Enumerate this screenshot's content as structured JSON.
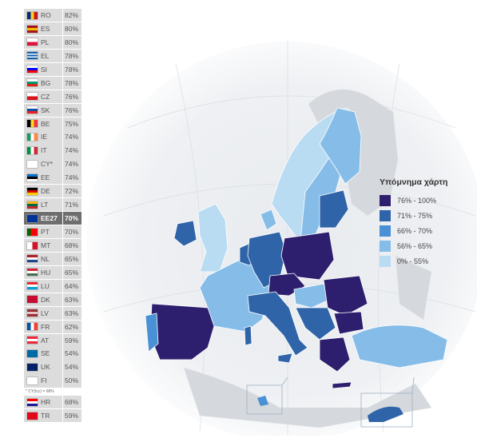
{
  "ranking": [
    {
      "code": "RO",
      "value": "82%",
      "flag": [
        "#002B7F",
        "#FCD116",
        "#CE1126"
      ],
      "dir": "v"
    },
    {
      "code": "ES",
      "value": "80%",
      "flag": [
        "#AA151B",
        "#F1BF00",
        "#AA151B"
      ],
      "dir": "h"
    },
    {
      "code": "PL",
      "value": "80%",
      "flag": [
        "#ffffff",
        "#DC143C"
      ],
      "dir": "h"
    },
    {
      "code": "EL",
      "value": "78%",
      "flag": [
        "#0D5EAF",
        "#ffffff",
        "#0D5EAF",
        "#ffffff",
        "#0D5EAF"
      ],
      "dir": "h"
    },
    {
      "code": "SI",
      "value": "78%",
      "flag": [
        "#ffffff",
        "#0000FF",
        "#FF0000"
      ],
      "dir": "h"
    },
    {
      "code": "BG",
      "value": "78%",
      "flag": [
        "#ffffff",
        "#00966E",
        "#D62612"
      ],
      "dir": "h"
    },
    {
      "code": "CZ",
      "value": "76%",
      "flag": [
        "#ffffff",
        "#D7141A"
      ],
      "dir": "h"
    },
    {
      "code": "SK",
      "value": "76%",
      "flag": [
        "#ffffff",
        "#0B4EA2",
        "#EE1C25"
      ],
      "dir": "h"
    },
    {
      "code": "BE",
      "value": "75%",
      "flag": [
        "#000000",
        "#FDDA24",
        "#EF3340"
      ],
      "dir": "v"
    },
    {
      "code": "IE",
      "value": "74%",
      "flag": [
        "#169B62",
        "#ffffff",
        "#FF883E"
      ],
      "dir": "v"
    },
    {
      "code": "IT",
      "value": "74%",
      "flag": [
        "#009246",
        "#ffffff",
        "#CE2B37"
      ],
      "dir": "v"
    },
    {
      "code": "CY*",
      "value": "74%",
      "flag": [
        "#ffffff"
      ],
      "dir": "h"
    },
    {
      "code": "EE",
      "value": "74%",
      "flag": [
        "#0072CE",
        "#000000",
        "#ffffff"
      ],
      "dir": "h"
    },
    {
      "code": "DE",
      "value": "72%",
      "flag": [
        "#000000",
        "#DD0000",
        "#FFCE00"
      ],
      "dir": "h"
    },
    {
      "code": "LT",
      "value": "71%",
      "flag": [
        "#FDB913",
        "#006A44",
        "#C1272D"
      ],
      "dir": "h"
    },
    {
      "code": "EE27",
      "value": "70%",
      "flag": [
        "#003399"
      ],
      "dir": "h",
      "avg": true
    },
    {
      "code": "PT",
      "value": "70%",
      "flag": [
        "#006600",
        "#FF0000",
        "#FF0000"
      ],
      "dir": "v"
    },
    {
      "code": "MT",
      "value": "68%",
      "flag": [
        "#ffffff",
        "#CF142B"
      ],
      "dir": "v"
    },
    {
      "code": "NL",
      "value": "65%",
      "flag": [
        "#AE1C28",
        "#ffffff",
        "#21468B"
      ],
      "dir": "h"
    },
    {
      "code": "HU",
      "value": "65%",
      "flag": [
        "#CE2939",
        "#ffffff",
        "#477050"
      ],
      "dir": "h"
    },
    {
      "code": "LU",
      "value": "64%",
      "flag": [
        "#ED2939",
        "#ffffff",
        "#00A1DE"
      ],
      "dir": "h"
    },
    {
      "code": "DK",
      "value": "63%",
      "flag": [
        "#C60C30"
      ],
      "dir": "h"
    },
    {
      "code": "LV",
      "value": "63%",
      "flag": [
        "#9E3039",
        "#9E3039",
        "#ffffff",
        "#9E3039",
        "#9E3039"
      ],
      "dir": "h"
    },
    {
      "code": "FR",
      "value": "62%",
      "flag": [
        "#0055A4",
        "#ffffff",
        "#EF4135"
      ],
      "dir": "v"
    },
    {
      "code": "AT",
      "value": "59%",
      "flag": [
        "#ED2939",
        "#ffffff",
        "#ED2939"
      ],
      "dir": "h"
    },
    {
      "code": "SE",
      "value": "54%",
      "flag": [
        "#006AA7"
      ],
      "dir": "h"
    },
    {
      "code": "UK",
      "value": "54%",
      "flag": [
        "#012169"
      ],
      "dir": "h"
    },
    {
      "code": "FI",
      "value": "50%",
      "flag": [
        "#ffffff"
      ],
      "dir": "h"
    }
  ],
  "footnote": "* CY(tcc) = 68%",
  "extra": [
    {
      "code": "HR",
      "value": "68%",
      "flag": [
        "#FF0000",
        "#ffffff",
        "#171796"
      ],
      "dir": "h"
    },
    {
      "code": "TR",
      "value": "59%",
      "flag": [
        "#E30A17"
      ],
      "dir": "h"
    }
  ],
  "legend": {
    "title": "Υπόμνημα χάρτη",
    "items": [
      {
        "label": "76% - 100%",
        "color": "#2e1f6e"
      },
      {
        "label": "71% - 75%",
        "color": "#2f64a8"
      },
      {
        "label": "66% - 70%",
        "color": "#4a90d4"
      },
      {
        "label": "56% - 65%",
        "color": "#86bde8"
      },
      {
        "label": "0% - 55%",
        "color": "#b9dcf3"
      }
    ]
  },
  "colors": {
    "c1": "#2e1f6e",
    "c2": "#2f64a8",
    "c3": "#4a90d4",
    "c4": "#86bde8",
    "c5": "#b9dcf3",
    "nonEU": "#d5d8dc",
    "sea": "#ffffff"
  }
}
